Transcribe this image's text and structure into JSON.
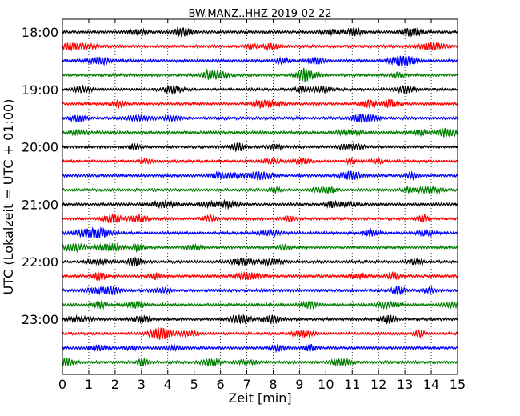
{
  "chart_data": {
    "type": "line",
    "title": "BW.MANZ..HHZ 2019-02-22",
    "xlabel": "Zeit  [min]",
    "ylabel": "UTC (Lokalzeit = UTC + 01:00)",
    "xlim": [
      0,
      15
    ],
    "x_ticks": [
      "0",
      "1",
      "2",
      "3",
      "4",
      "5",
      "6",
      "7",
      "8",
      "9",
      "10",
      "11",
      "12",
      "13",
      "14",
      "15"
    ],
    "y_tick_labels": [
      "18:00",
      "19:00",
      "20:00",
      "21:00",
      "22:00",
      "23:00"
    ],
    "trace_interval_min": 15,
    "start_time": "18:00",
    "trace_count": 24,
    "trace_colors": [
      "#000000",
      "#ff0000",
      "#0000ff",
      "#007f00"
    ],
    "grid": "vertical dotted at each minute",
    "series_note": "Each row is a 15-minute seismogram trace; traces cycle black, red, blue, green."
  }
}
